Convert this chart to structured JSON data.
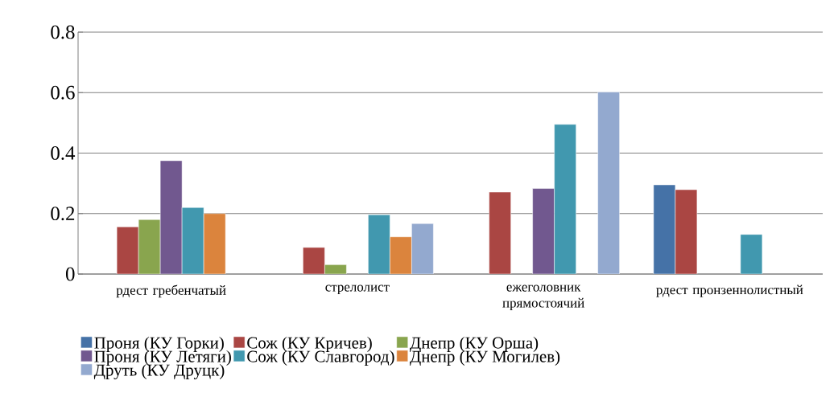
{
  "chart_data": {
    "type": "bar",
    "categories": [
      "рдест гребенчатый",
      "стрелолист",
      "ежеголовник прямостоячий",
      "рдест пронзеннолистный"
    ],
    "series": [
      {
        "name": "Проня (КУ Горки)",
        "color": "#4572a7",
        "values": [
          null,
          null,
          null,
          0.295
        ]
      },
      {
        "name": "Сож (КУ Кричев)",
        "color": "#aa4643",
        "values": [
          0.156,
          0.088,
          0.271,
          0.279
        ]
      },
      {
        "name": "Днепр (КУ Орша)",
        "color": "#89a54e",
        "values": [
          0.18,
          0.031,
          null,
          null
        ]
      },
      {
        "name": "Проня (КУ Летяги)",
        "color": "#71588f",
        "values": [
          0.375,
          null,
          0.283,
          null
        ]
      },
      {
        "name": "Сож (КУ Славгород)",
        "color": "#4198af",
        "values": [
          0.22,
          0.196,
          0.495,
          0.131
        ]
      },
      {
        "name": "Днепр (КУ Могилев)",
        "color": "#db843d",
        "values": [
          0.2,
          0.123,
          null,
          null
        ]
      },
      {
        "name": "Друть (КУ Друцк)",
        "color": "#93a9cf",
        "values": [
          null,
          0.167,
          0.602,
          null
        ]
      }
    ],
    "ylim": [
      0,
      0.8
    ],
    "yticks": [
      0,
      0.2,
      0.4,
      0.6,
      0.8
    ],
    "grid": "y",
    "legend": "bottom"
  }
}
